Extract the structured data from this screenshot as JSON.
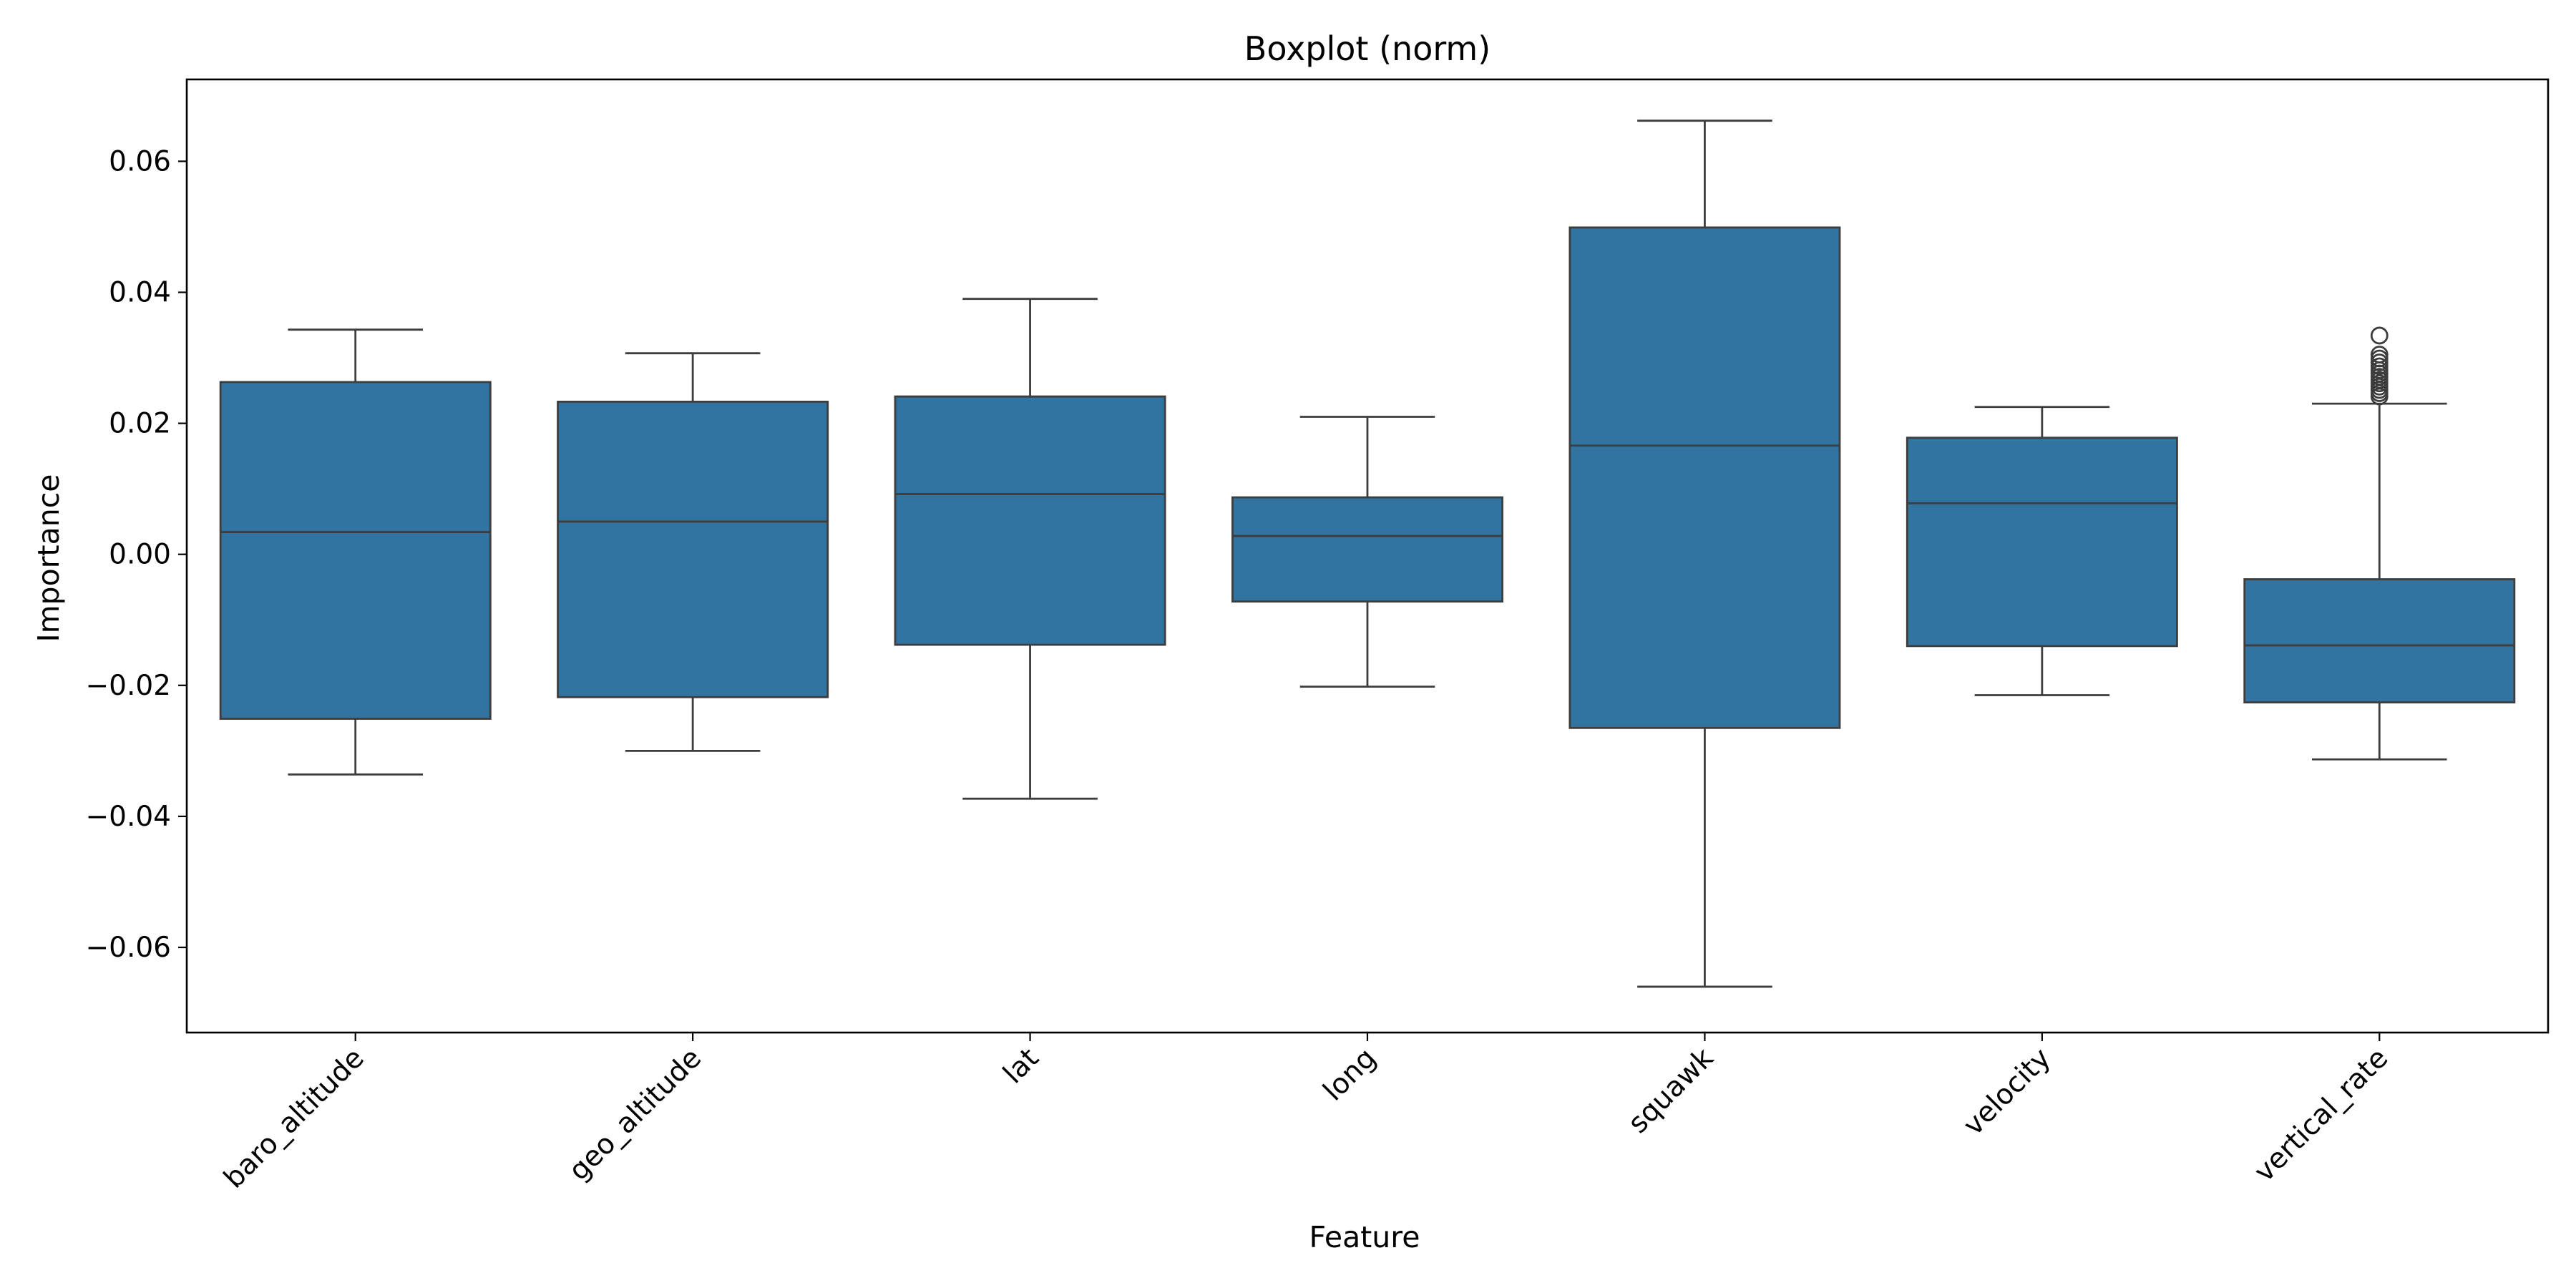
{
  "chart_data": {
    "type": "boxplot",
    "title": "Boxplot (norm)",
    "xlabel": "Feature",
    "ylabel": "Importance",
    "ylim": [
      -0.073,
      0.0725
    ],
    "yticks": [
      -0.06,
      -0.04,
      -0.02,
      0.0,
      0.02,
      0.04,
      0.06
    ],
    "ytick_labels": [
      "−0.06",
      "−0.04",
      "−0.02",
      "0.00",
      "0.02",
      "0.04",
      "0.06"
    ],
    "categories": [
      "baro_altitude",
      "geo_altitude",
      "lat",
      "long",
      "squawk",
      "velocity",
      "vertical_rate"
    ],
    "box_color": "#3274a1",
    "line_color": "#3d3d3d",
    "boxes": [
      {
        "name": "baro_altitude",
        "whisker_low": -0.0336,
        "q1": -0.0251,
        "median": 0.0034,
        "q3": 0.0263,
        "whisker_high": 0.0343,
        "outliers": []
      },
      {
        "name": "geo_altitude",
        "whisker_low": -0.03,
        "q1": -0.0218,
        "median": 0.005,
        "q3": 0.0233,
        "whisker_high": 0.0307,
        "outliers": []
      },
      {
        "name": "lat",
        "whisker_low": -0.0373,
        "q1": -0.0138,
        "median": 0.0092,
        "q3": 0.0241,
        "whisker_high": 0.039,
        "outliers": []
      },
      {
        "name": "long",
        "whisker_low": -0.0202,
        "q1": -0.0072,
        "median": 0.0028,
        "q3": 0.0087,
        "whisker_high": 0.021,
        "outliers": []
      },
      {
        "name": "squawk",
        "whisker_low": -0.066,
        "q1": -0.0265,
        "median": 0.0166,
        "q3": 0.0499,
        "whisker_high": 0.0662,
        "outliers": []
      },
      {
        "name": "velocity",
        "whisker_low": -0.0215,
        "q1": -0.014,
        "median": 0.0078,
        "q3": 0.0178,
        "whisker_high": 0.0225,
        "outliers": []
      },
      {
        "name": "vertical_rate",
        "whisker_low": -0.0313,
        "q1": -0.0226,
        "median": -0.0139,
        "q3": -0.0038,
        "whisker_high": 0.023,
        "outliers": [
          0.0334,
          0.0305,
          0.0299,
          0.0293,
          0.0287,
          0.0281,
          0.0276,
          0.0271,
          0.0266,
          0.0261,
          0.0256,
          0.0251,
          0.0246,
          0.0241
        ]
      }
    ]
  }
}
